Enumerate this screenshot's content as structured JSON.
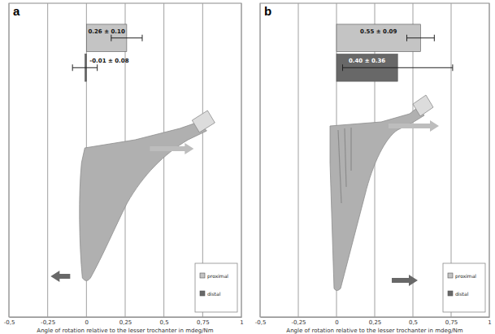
{
  "chart_data": [
    {
      "type": "bar",
      "title": "a",
      "orientation": "horizontal",
      "xlabel": "Angle of rotation relative to the lesser trochanter in mdeg/Nm",
      "categories": [
        null
      ],
      "series": [
        {
          "name": "proximal",
          "color": "#c4c4c4",
          "values": [
            0.26
          ],
          "error": [
            0.1
          ],
          "value_labels": [
            "0.26 ± 0.10"
          ]
        },
        {
          "name": "distal",
          "color": "#686868",
          "values": [
            -0.01
          ],
          "error": [
            0.08
          ],
          "value_labels": [
            "-0.01 ± 0.08"
          ]
        }
      ],
      "xlim": [
        -0.5,
        1
      ],
      "xticks": [
        {
          "value": -0.5,
          "label": "-0,5"
        },
        {
          "value": -0.25,
          "label": "-0,25"
        },
        0,
        {
          "value": 0.25,
          "label": "0,25"
        },
        {
          "value": 0.5,
          "label": "0,5"
        },
        {
          "value": 0.75,
          "label": "0,75"
        },
        1
      ],
      "grid": true,
      "legend": "bottom right",
      "data_labels": true
    },
    {
      "type": "bar",
      "title": "b",
      "orientation": "horizontal",
      "xlabel": "Angle of rotation relative to the lesser trochanter in mdeg/Nm",
      "categories": [
        null
      ],
      "series": [
        {
          "name": "proximal",
          "color": "#c4c4c4",
          "values": [
            0.55
          ],
          "error": [
            0.09
          ],
          "value_labels": [
            "0.55 ± 0.09"
          ]
        },
        {
          "name": "distal",
          "color": "#686868",
          "values": [
            0.4
          ],
          "error": [
            0.36
          ],
          "value_labels": [
            "0.40 ± 0.36"
          ]
        }
      ],
      "xlim": [
        -0.5,
        1
      ],
      "xticks": [
        {
          "value": -0.5,
          "label": "-0,5"
        },
        {
          "value": -0.25,
          "label": "-0,25"
        },
        0,
        {
          "value": 0.25,
          "label": "0,25"
        },
        {
          "value": 0.5,
          "label": "0,5"
        },
        {
          "value": 0.75,
          "label": "0,75"
        },
        1
      ],
      "grid": true,
      "legend": "bottom right",
      "data_labels": true
    }
  ]
}
